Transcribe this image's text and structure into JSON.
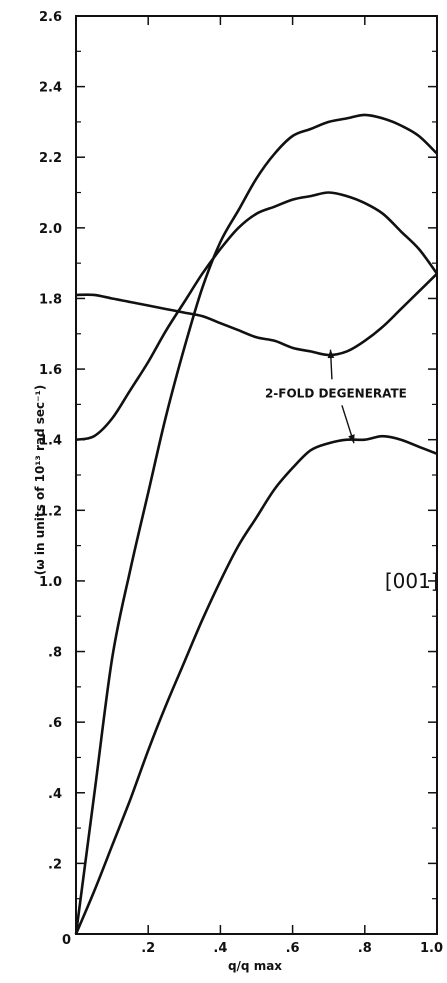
{
  "chart_data": {
    "type": "line",
    "title": "",
    "xlabel": "q/q max",
    "ylabel": "(ω in units of 10¹³ rad sec⁻¹)",
    "xlim": [
      0,
      1.0
    ],
    "ylim": [
      0,
      2.6
    ],
    "grid": false,
    "legend": "none",
    "x_ticks": [
      {
        "v": 0,
        "label": "0"
      },
      {
        "v": 0.2,
        "label": ".2"
      },
      {
        "v": 0.4,
        "label": ".4"
      },
      {
        "v": 0.6,
        "label": ".6"
      },
      {
        "v": 0.8,
        "label": ".8"
      },
      {
        "v": 1.0,
        "label": "1.0"
      }
    ],
    "y_ticks": [
      {
        "v": 0,
        "label": ""
      },
      {
        "v": 0.2,
        "label": ".2"
      },
      {
        "v": 0.4,
        "label": ".4"
      },
      {
        "v": 0.6,
        "label": ".6"
      },
      {
        "v": 0.8,
        "label": ".8"
      },
      {
        "v": 1.0,
        "label": "1.0"
      },
      {
        "v": 1.2,
        "label": "1.2"
      },
      {
        "v": 1.4,
        "label": "1.4"
      },
      {
        "v": 1.6,
        "label": "1.6"
      },
      {
        "v": 1.8,
        "label": "1.8"
      },
      {
        "v": 2.0,
        "label": "2.0"
      },
      {
        "v": 2.2,
        "label": "2.2"
      },
      {
        "v": 2.4,
        "label": "2.4"
      },
      {
        "v": 2.6,
        "label": "2.6"
      }
    ],
    "series": [
      {
        "x": [
          0,
          0.05,
          0.1,
          0.15,
          0.2,
          0.25,
          0.3,
          0.35,
          0.4,
          0.45,
          0.5,
          0.55,
          0.6,
          0.65,
          0.7,
          0.75,
          0.8,
          0.85,
          0.9,
          0.95,
          1.0
        ],
        "y": [
          0,
          0.39,
          0.78,
          1.03,
          1.25,
          1.47,
          1.66,
          1.83,
          1.96,
          2.05,
          2.14,
          2.21,
          2.26,
          2.28,
          2.3,
          2.31,
          2.32,
          2.31,
          2.29,
          2.26,
          2.21
        ]
      },
      {
        "x": [
          0,
          0.05,
          0.1,
          0.15,
          0.2,
          0.25,
          0.3,
          0.35,
          0.4,
          0.45,
          0.5,
          0.55,
          0.6,
          0.65,
          0.7,
          0.75,
          0.8,
          0.85,
          0.9,
          0.95,
          1.0
        ],
        "y": [
          0,
          0.12,
          0.25,
          0.38,
          0.52,
          0.65,
          0.77,
          0.89,
          1.0,
          1.1,
          1.18,
          1.26,
          1.32,
          1.37,
          1.39,
          1.4,
          1.4,
          1.41,
          1.4,
          1.38,
          1.36
        ]
      },
      {
        "x": [
          0,
          0.05,
          0.1,
          0.15,
          0.2,
          0.25,
          0.3,
          0.35,
          0.4,
          0.45,
          0.5,
          0.55,
          0.6,
          0.65,
          0.7,
          0.75,
          0.8,
          0.85,
          0.9,
          0.95,
          1.0
        ],
        "y": [
          1.81,
          1.81,
          1.8,
          1.79,
          1.78,
          1.77,
          1.76,
          1.75,
          1.73,
          1.71,
          1.69,
          1.68,
          1.66,
          1.65,
          1.64,
          1.65,
          1.68,
          1.72,
          1.77,
          1.82,
          1.87
        ]
      },
      {
        "x": [
          0,
          0.05,
          0.1,
          0.15,
          0.2,
          0.25,
          0.3,
          0.35,
          0.4,
          0.45,
          0.5,
          0.55,
          0.6,
          0.65,
          0.7,
          0.75,
          0.8,
          0.85,
          0.9,
          0.95,
          1.0
        ],
        "y": [
          1.4,
          1.41,
          1.46,
          1.54,
          1.62,
          1.71,
          1.79,
          1.87,
          1.94,
          2.0,
          2.04,
          2.06,
          2.08,
          2.09,
          2.1,
          2.09,
          2.07,
          2.04,
          1.99,
          1.94,
          1.87
        ]
      }
    ],
    "annotations": [
      {
        "text": "2-FOLD DEGENERATE",
        "x": 0.72,
        "y": 1.52
      },
      {
        "text": "[001]",
        "x": 0.93,
        "y": 1.0
      }
    ]
  },
  "origin_label": "0"
}
